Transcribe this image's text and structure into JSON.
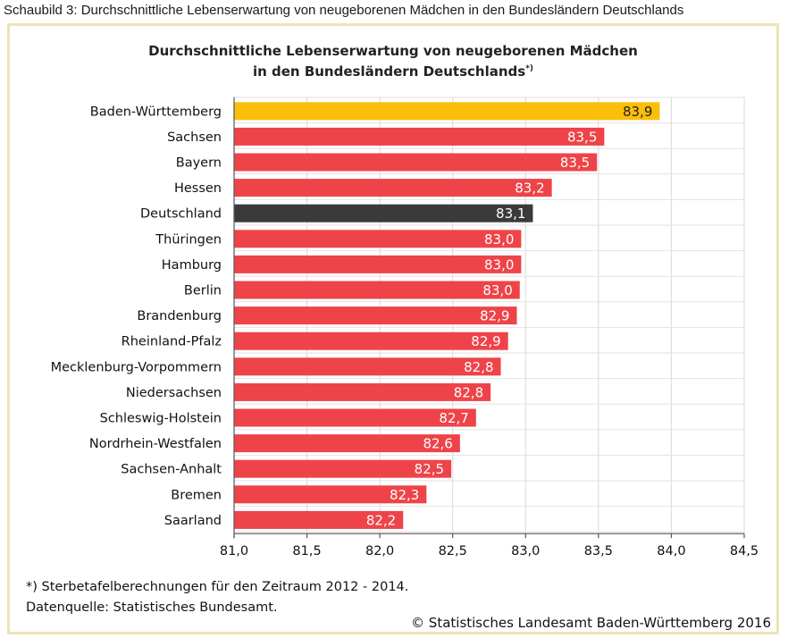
{
  "caption": "Schaubild 3: Durchschnittliche Lebenserwartung von neugeborenen Mädchen in den Bundesländern Deutschlands",
  "chart_data": {
    "type": "bar",
    "orientation": "horizontal",
    "title_line1": "Durchschnittliche Lebenserwartung von neugeborenen Mädchen",
    "title_line2": "in den Bundesländern Deutschlands",
    "title_marker": "*)",
    "categories": [
      "Baden-Württemberg",
      "Sachsen",
      "Bayern",
      "Hessen",
      "Deutschland",
      "Thüringen",
      "Hamburg",
      "Berlin",
      "Brandenburg",
      "Rheinland-Pfalz",
      "Mecklenburg-Vorpommern",
      "Niedersachsen",
      "Schleswig-Holstein",
      "Nordrhein-Westfalen",
      "Sachsen-Anhalt",
      "Bremen",
      "Saarland"
    ],
    "values": [
      83.92,
      83.54,
      83.49,
      83.18,
      83.05,
      82.97,
      82.97,
      82.96,
      82.94,
      82.88,
      82.83,
      82.76,
      82.66,
      82.55,
      82.49,
      82.32,
      82.16
    ],
    "value_labels": [
      "83,9",
      "83,5",
      "83,5",
      "83,2",
      "83,1",
      "83,0",
      "83,0",
      "83,0",
      "82,9",
      "82,9",
      "82,8",
      "82,8",
      "82,7",
      "82,6",
      "82,5",
      "82,3",
      "82,2"
    ],
    "bar_colors": [
      "#fbbf0a",
      "#ee4449",
      "#ee4449",
      "#ee4449",
      "#3a3a3a",
      "#ee4449",
      "#ee4449",
      "#ee4449",
      "#ee4449",
      "#ee4449",
      "#ee4449",
      "#ee4449",
      "#ee4449",
      "#ee4449",
      "#ee4449",
      "#ee4449",
      "#ee4449"
    ],
    "label_colors": [
      "#222222",
      "#ffffff",
      "#ffffff",
      "#ffffff",
      "#ffffff",
      "#ffffff",
      "#ffffff",
      "#ffffff",
      "#ffffff",
      "#ffffff",
      "#ffffff",
      "#ffffff",
      "#ffffff",
      "#ffffff",
      "#ffffff",
      "#ffffff",
      "#ffffff"
    ],
    "x_ticks": [
      81.0,
      81.5,
      82.0,
      82.5,
      83.0,
      83.5,
      84.0,
      84.5
    ],
    "x_tick_labels": [
      "81,0",
      "81,5",
      "82,0",
      "82,5",
      "83,0",
      "83,5",
      "84,0",
      "84,5"
    ],
    "xlim": [
      81.0,
      84.5
    ],
    "grid": true,
    "footnote": "*) Sterbetafelberechnungen für den Zeitraum 2012 - 2014.",
    "source": "Datenquelle: Statistisches Bundesamt.",
    "copyright": "© Statistisches Landesamt Baden-Württemberg 2016"
  }
}
